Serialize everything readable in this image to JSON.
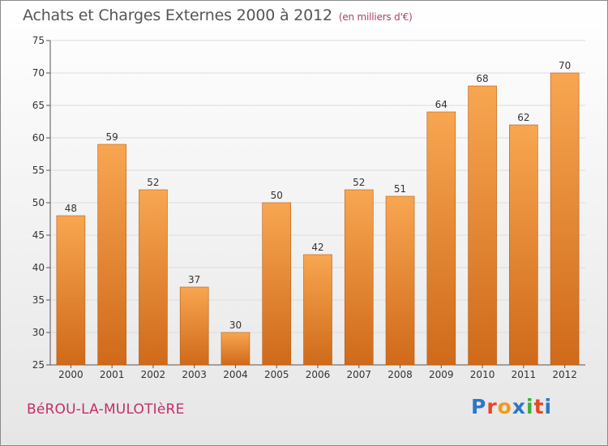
{
  "title": "Achats et Charges Externes 2000 à 2012",
  "unit_note": "(en milliers d'€)",
  "town": "BéROU-LA-MULOTIèRE",
  "logo": [
    "P",
    "r",
    "o",
    "x",
    "i",
    "t",
    "i"
  ],
  "colors": {
    "bar_top": "#f8a651",
    "bar_bottom": "#cf6a1a",
    "grid": "#dcdcdc",
    "logo": [
      "#2a78c8",
      "#e8462a",
      "#f39a1b",
      "#2a78c8",
      "#3fae3a",
      "#e8462a",
      "#2a78c8"
    ]
  },
  "chart_data": {
    "type": "bar",
    "categories": [
      "2000",
      "2001",
      "2002",
      "2003",
      "2004",
      "2005",
      "2006",
      "2007",
      "2008",
      "2009",
      "2010",
      "2011",
      "2012"
    ],
    "values": [
      48,
      59,
      52,
      37,
      30,
      50,
      42,
      52,
      51,
      64,
      68,
      62,
      70
    ],
    "ylim": [
      25,
      75
    ],
    "yticks": [
      25,
      30,
      35,
      40,
      45,
      50,
      55,
      60,
      65,
      70,
      75
    ],
    "grid": true
  }
}
